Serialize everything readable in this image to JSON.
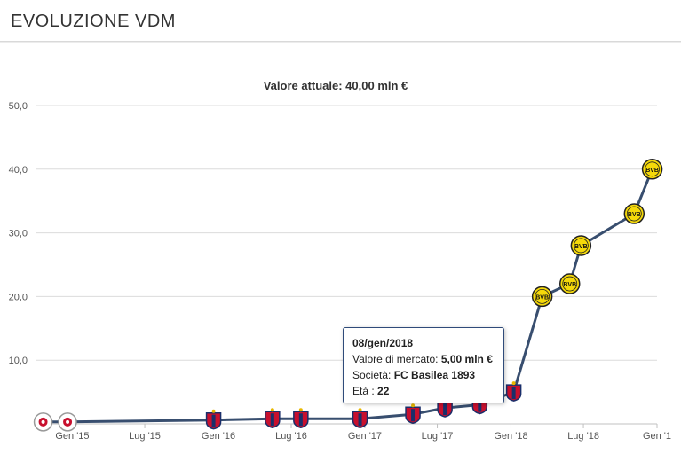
{
  "header": {
    "title": "EVOLUZIONE VDM"
  },
  "chart_data": {
    "type": "line",
    "title": "Valore attuale: 40,00 mln €",
    "xlabel": "",
    "ylabel": "",
    "ylim": [
      0,
      50
    ],
    "yticks": [
      {
        "value": 10,
        "label": "10,0"
      },
      {
        "value": 20,
        "label": "20,0"
      },
      {
        "value": 30,
        "label": "30,0"
      },
      {
        "value": 40,
        "label": "40,0"
      },
      {
        "value": 50,
        "label": "50,0"
      }
    ],
    "xlim": [
      "2014-10-01",
      "2019-01-01"
    ],
    "xticks": [
      {
        "date": "2015-01-01",
        "label": "Gen '15"
      },
      {
        "date": "2015-07-01",
        "label": "Lug '15"
      },
      {
        "date": "2016-01-01",
        "label": "Gen '16"
      },
      {
        "date": "2016-07-01",
        "label": "Lug '16"
      },
      {
        "date": "2017-01-01",
        "label": "Gen '17"
      },
      {
        "date": "2017-07-01",
        "label": "Lug '17"
      },
      {
        "date": "2018-01-01",
        "label": "Gen '18"
      },
      {
        "date": "2018-07-01",
        "label": "Lug '18"
      },
      {
        "date": "2019-01-01",
        "label": "Gen '1"
      }
    ],
    "grid": true,
    "line_color": "#384e6f",
    "series": [
      {
        "points": [
          {
            "date": "2014-10-20",
            "value": 0.3,
            "club": "lausanne"
          },
          {
            "date": "2014-12-20",
            "value": 0.3,
            "club": "lausanne"
          },
          {
            "date": "2015-12-20",
            "value": 0.6,
            "club": "basel"
          },
          {
            "date": "2016-05-15",
            "value": 0.8,
            "club": "basel"
          },
          {
            "date": "2016-07-25",
            "value": 0.8,
            "club": "basel"
          },
          {
            "date": "2016-12-20",
            "value": 0.8,
            "club": "basel"
          },
          {
            "date": "2017-05-01",
            "value": 1.5,
            "club": "basel"
          },
          {
            "date": "2017-07-20",
            "value": 2.5,
            "club": "basel"
          },
          {
            "date": "2017-10-15",
            "value": 3.0,
            "club": "basel"
          },
          {
            "date": "2018-01-08",
            "value": 5.0,
            "club": "basel"
          },
          {
            "date": "2018-03-20",
            "value": 20.0,
            "club": "bvb"
          },
          {
            "date": "2018-05-28",
            "value": 22.0,
            "club": "bvb"
          },
          {
            "date": "2018-06-25",
            "value": 28.0,
            "club": "bvb"
          },
          {
            "date": "2018-11-05",
            "value": 33.0,
            "club": "bvb"
          },
          {
            "date": "2018-12-20",
            "value": 40.0,
            "club": "bvb"
          }
        ]
      }
    ],
    "tooltip": {
      "date": "08/gen/2018",
      "market_value_label": "Valore di mercato:",
      "market_value": "5,00 mln €",
      "club_label": "Società:",
      "club": "FC Basilea 1893",
      "age_label": "Età :",
      "age": "22"
    },
    "badges": {
      "bvb": {
        "fill": "#f5d90a",
        "stroke": "#222222",
        "text": "BVB",
        "text_color": "#111111"
      },
      "basel": {
        "fill": "#c8102e",
        "stroke": "#1a2f6b",
        "text": "FCB",
        "text_color": "#f5d90a"
      },
      "lausanne": {
        "fill": "#ffffff",
        "stroke": "#999999",
        "text": "",
        "text_color": "#c8102e"
      }
    }
  }
}
